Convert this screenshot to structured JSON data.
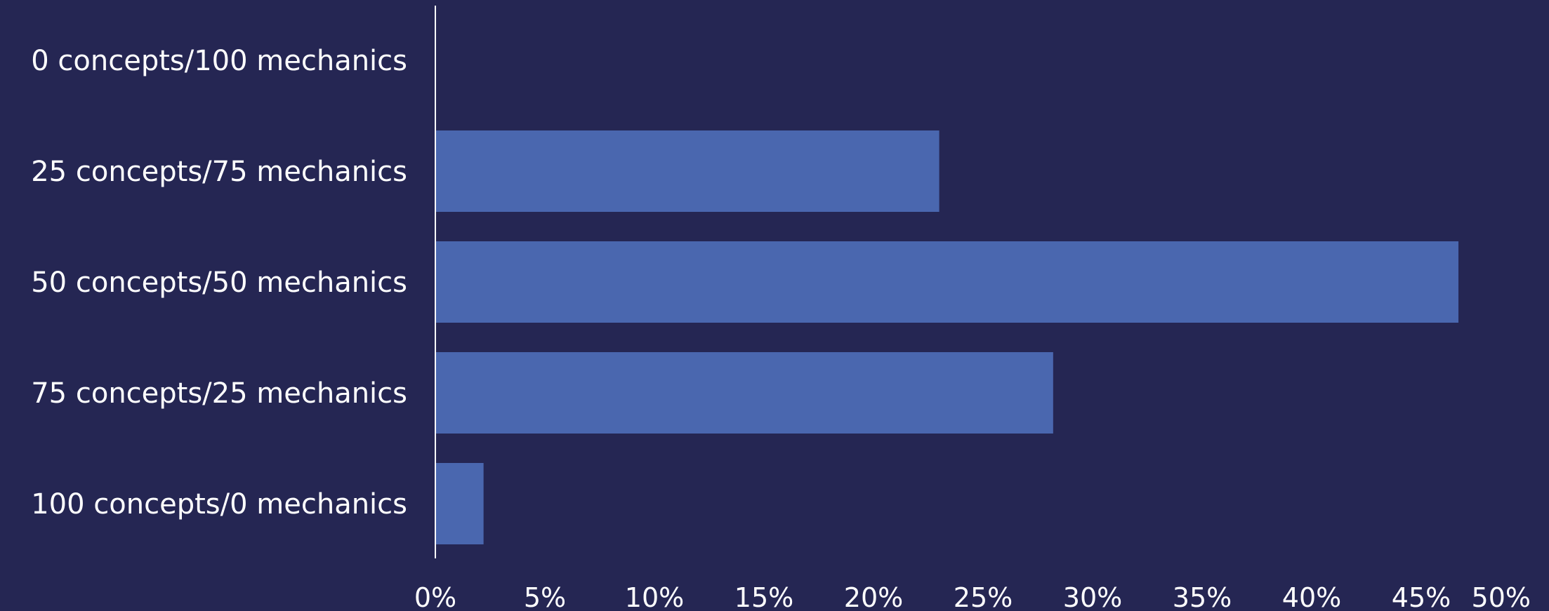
{
  "colors": {
    "background": "#252653",
    "bar": "#4a67af",
    "axis": "#ffffff",
    "text": "#ffffff"
  },
  "chart_data": {
    "type": "bar",
    "orientation": "horizontal",
    "categories": [
      "0 concepts/100 mechanics",
      "25 concepts/75 mechanics",
      "50 concepts/50 mechanics",
      "75 concepts/25 mechanics",
      "100 concepts/0 mechanics"
    ],
    "values": [
      0,
      23,
      46.7,
      28.2,
      2.2
    ],
    "value_unit": "%",
    "xlim": [
      0,
      50
    ],
    "xticks": [
      "0%",
      "5%",
      "10%",
      "15%",
      "20%",
      "25%",
      "30%",
      "35%",
      "40%",
      "45%",
      "50%"
    ],
    "title": "",
    "xlabel": "",
    "ylabel": "",
    "grid": false,
    "legend": "none"
  }
}
